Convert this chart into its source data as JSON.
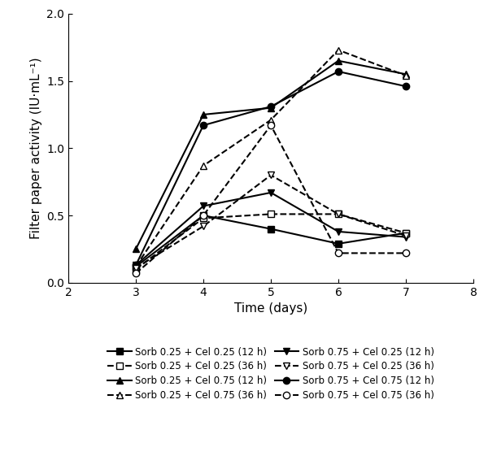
{
  "x": [
    3,
    4,
    5,
    6,
    7
  ],
  "series": {
    "Sorb 0.25 + Cel 0.25 (12 h)": [
      0.12,
      0.5,
      0.4,
      0.29,
      0.37
    ],
    "Sorb 0.25 + Cel 0.75 (12 h)": [
      0.25,
      1.25,
      1.3,
      1.65,
      1.55
    ],
    "Sorb 0.75 + Cel 0.25 (12 h)": [
      0.13,
      0.57,
      0.67,
      0.38,
      0.34
    ],
    "Sorb 0.75 + Cel 0.75 (12 h)": [
      0.13,
      1.17,
      1.31,
      1.57,
      1.46
    ],
    "Sorb 0.25 + Cel 0.25 (36 h)": [
      0.1,
      0.48,
      0.51,
      0.51,
      0.37
    ],
    "Sorb 0.25 + Cel 0.75 (36 h)": [
      0.12,
      0.87,
      1.21,
      1.73,
      1.54
    ],
    "Sorb 0.75 + Cel 0.25 (36 h)": [
      0.11,
      0.42,
      0.8,
      0.51,
      0.35
    ],
    "Sorb 0.75 + Cel 0.75 (36 h)": [
      0.07,
      0.5,
      1.17,
      0.22,
      0.22
    ]
  },
  "series_12h_order": [
    "Sorb 0.25 + Cel 0.25 (12 h)",
    "Sorb 0.25 + Cel 0.75 (12 h)",
    "Sorb 0.75 + Cel 0.25 (12 h)",
    "Sorb 0.75 + Cel 0.75 (12 h)"
  ],
  "series_36h_order": [
    "Sorb 0.25 + Cel 0.25 (36 h)",
    "Sorb 0.25 + Cel 0.75 (36 h)",
    "Sorb 0.75 + Cel 0.25 (36 h)",
    "Sorb 0.75 + Cel 0.75 (36 h)"
  ],
  "markers_12h": [
    "s",
    "^",
    "v",
    "o"
  ],
  "markers_36h": [
    "s",
    "^",
    "v",
    "o"
  ],
  "xlabel": "Time (days)",
  "ylabel": "Filter paper activity (IU·mL⁻¹)",
  "xlim": [
    2,
    8
  ],
  "ylim": [
    0.0,
    2.0
  ],
  "yticks": [
    0.0,
    0.5,
    1.0,
    1.5,
    2.0
  ],
  "xticks": [
    2,
    3,
    4,
    5,
    6,
    7,
    8
  ],
  "background_color": "#ffffff",
  "legend_labels_12h": [
    "Sorb 0.25 + Cel 0.25 (12 h)",
    "Sorb 0.25 + Cel 0.75 (12 h)",
    "Sorb 0.75 + Cel 0.25 (12 h)",
    "Sorb 0.75 + Cel 0.75 (12 h)"
  ],
  "legend_labels_36h": [
    "Sorb 0.25 + Cel 0.25 (36 h)",
    "Sorb 0.25 + Cel 0.75 (36 h)",
    "Sorb 0.75 + Cel 0.25 (36 h)",
    "Sorb 0.75 + Cel 0.75 (36 h)"
  ]
}
